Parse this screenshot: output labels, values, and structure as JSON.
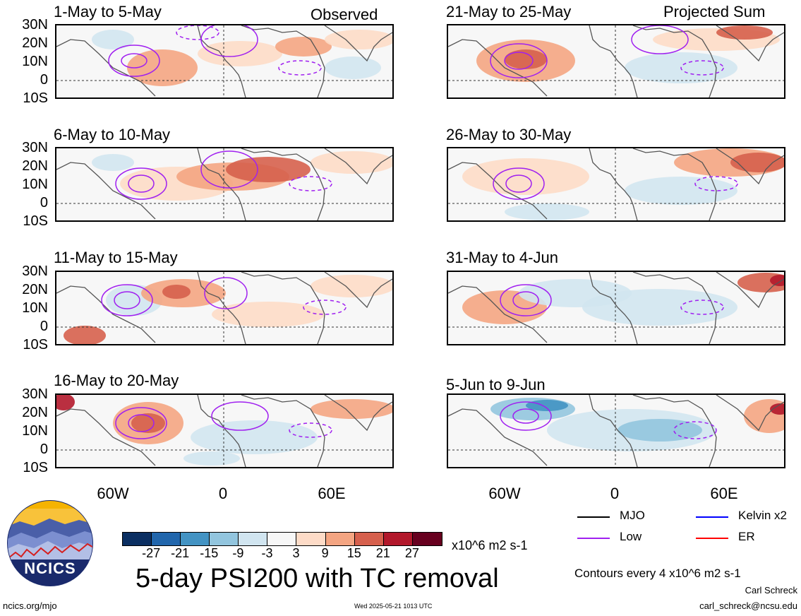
{
  "left_column": {
    "panels": [
      "1-May to 5-May",
      "6-May to 10-May",
      "11-May to 15-May",
      "16-May to 20-May"
    ],
    "corner_label": "Observed"
  },
  "right_column": {
    "panels": [
      "21-May to 25-May",
      "26-May to 30-May",
      "31-May to 4-Jun",
      "5-Jun to 9-Jun"
    ],
    "corner_label": "Projected Sum"
  },
  "lat_labels": [
    "30N",
    "20N",
    "10N",
    "0",
    "10S"
  ],
  "lon_labels": [
    "60W",
    "0",
    "60E"
  ],
  "colorbar": {
    "colors": [
      "#0b2f62",
      "#2166ac",
      "#4393c3",
      "#92c5de",
      "#d1e5f0",
      "#f7f7f7",
      "#fddbc7",
      "#f4a582",
      "#d6604d",
      "#b2182b",
      "#67001f"
    ],
    "ticks": [
      "-27",
      "-21",
      "-15",
      "-9",
      "-3",
      "3",
      "9",
      "15",
      "21",
      "27"
    ],
    "units": "x10^6 m2 s-1"
  },
  "title": "5-day PSI200 with TC removal",
  "legend": {
    "items": [
      {
        "label": "MJO",
        "color": "#000000"
      },
      {
        "label": "Kelvin x2",
        "color": "#0000ff"
      },
      {
        "label": "Low",
        "color": "#a020f0"
      },
      {
        "label": "ER",
        "color": "#ff0000"
      }
    ],
    "contour_note": "Contours every 4 x10^6 m2 s-1"
  },
  "footer": {
    "site": "ncics.org/mjo",
    "timestamp": "Wed 2025-05-21 1013 UTC",
    "author": "Carl Schreck",
    "email": "carl_schreck@ncsu.edu"
  },
  "logo": {
    "text": "NCICS"
  }
}
